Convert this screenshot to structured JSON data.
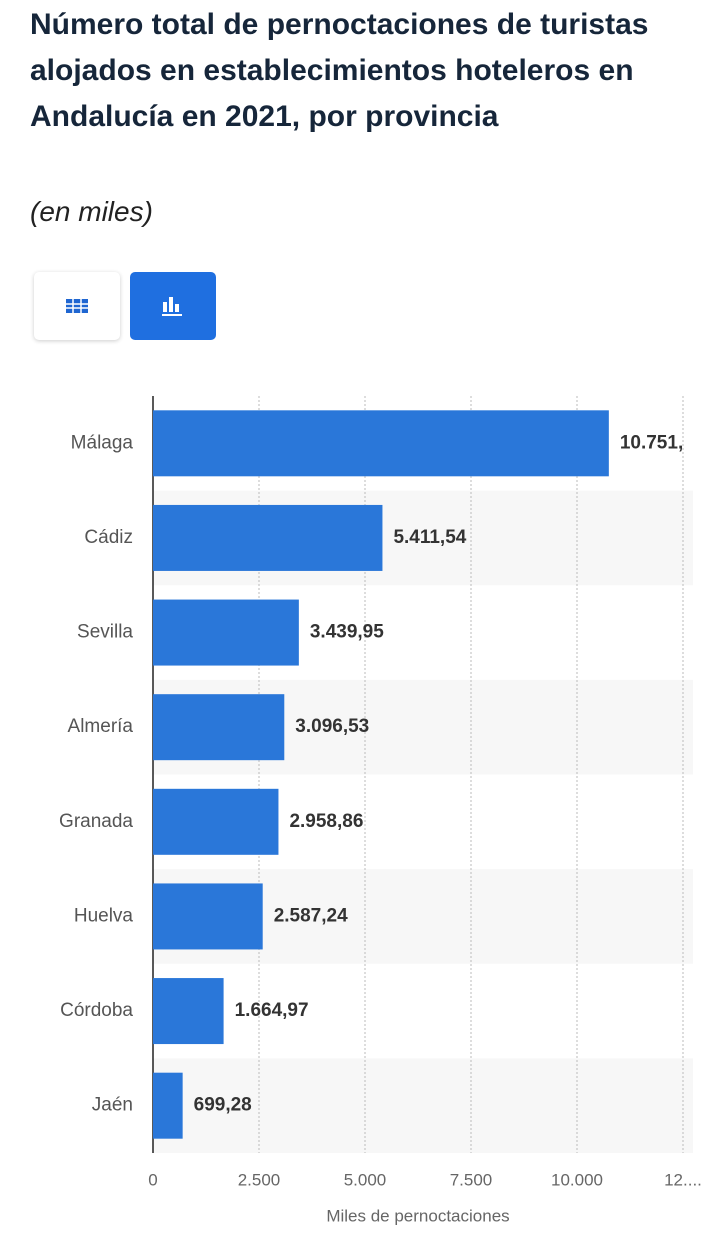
{
  "chart_data": {
    "type": "bar",
    "orientation": "horizontal",
    "title": "Número total de pernoctaciones de turistas alojados en establecimientos hoteleros en Andalucía en 2021, por provincia",
    "subtitle": "(en miles)",
    "x_label": "Miles de pernoctaciones",
    "categories": [
      "Málaga",
      "Cádiz",
      "Sevilla",
      "Almería",
      "Granada",
      "Huelva",
      "Córdoba",
      "Jaén"
    ],
    "values": [
      10751,
      5411.54,
      3439.95,
      3096.53,
      2958.86,
      2587.24,
      1664.97,
      699.28
    ],
    "value_labels": [
      "10.751,",
      "5.411,54",
      "3.439,95",
      "3.096,53",
      "2.958,86",
      "2.587,24",
      "1.664,97",
      "699,28"
    ],
    "color": "#2a77d9",
    "xlim": [
      0,
      12500
    ],
    "xticks": [
      0,
      {
        "value": 2500,
        "label": "2.500"
      },
      {
        "value": 5000,
        "label": "5.000"
      },
      {
        "value": 7500,
        "label": "7.500"
      },
      {
        "value": 10000,
        "label": "10.000"
      },
      {
        "value": 12500,
        "label": "12...."
      }
    ],
    "grid": true
  }
}
